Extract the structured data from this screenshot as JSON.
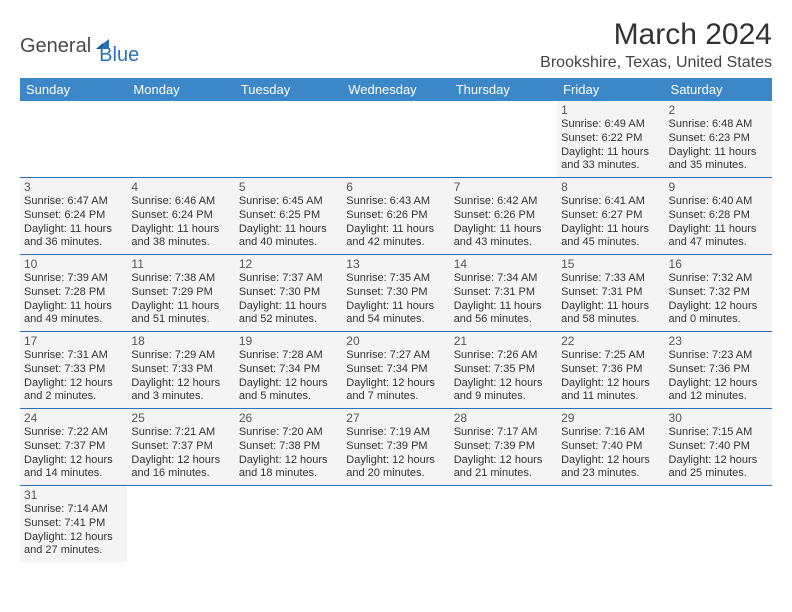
{
  "logo": {
    "text1": "General",
    "text2": "Blue"
  },
  "title": "March 2024",
  "location": "Brookshire, Texas, United States",
  "dayHeaders": [
    "Sunday",
    "Monday",
    "Tuesday",
    "Wednesday",
    "Thursday",
    "Friday",
    "Saturday"
  ],
  "colors": {
    "headerBg": "#3b87c8",
    "headerText": "#ffffff",
    "cellBg": "#f4f4f4",
    "borderColor": "#2a72b5",
    "logoAccent": "#2a72b5",
    "logoGray": "#4a4a4a"
  },
  "layout": {
    "startWeekday": 5,
    "daysInMonth": 31,
    "columns": 7,
    "rows": 6
  },
  "days": {
    "1": {
      "sunrise": "Sunrise: 6:49 AM",
      "sunset": "Sunset: 6:22 PM",
      "daylight1": "Daylight: 11 hours",
      "daylight2": "and 33 minutes."
    },
    "2": {
      "sunrise": "Sunrise: 6:48 AM",
      "sunset": "Sunset: 6:23 PM",
      "daylight1": "Daylight: 11 hours",
      "daylight2": "and 35 minutes."
    },
    "3": {
      "sunrise": "Sunrise: 6:47 AM",
      "sunset": "Sunset: 6:24 PM",
      "daylight1": "Daylight: 11 hours",
      "daylight2": "and 36 minutes."
    },
    "4": {
      "sunrise": "Sunrise: 6:46 AM",
      "sunset": "Sunset: 6:24 PM",
      "daylight1": "Daylight: 11 hours",
      "daylight2": "and 38 minutes."
    },
    "5": {
      "sunrise": "Sunrise: 6:45 AM",
      "sunset": "Sunset: 6:25 PM",
      "daylight1": "Daylight: 11 hours",
      "daylight2": "and 40 minutes."
    },
    "6": {
      "sunrise": "Sunrise: 6:43 AM",
      "sunset": "Sunset: 6:26 PM",
      "daylight1": "Daylight: 11 hours",
      "daylight2": "and 42 minutes."
    },
    "7": {
      "sunrise": "Sunrise: 6:42 AM",
      "sunset": "Sunset: 6:26 PM",
      "daylight1": "Daylight: 11 hours",
      "daylight2": "and 43 minutes."
    },
    "8": {
      "sunrise": "Sunrise: 6:41 AM",
      "sunset": "Sunset: 6:27 PM",
      "daylight1": "Daylight: 11 hours",
      "daylight2": "and 45 minutes."
    },
    "9": {
      "sunrise": "Sunrise: 6:40 AM",
      "sunset": "Sunset: 6:28 PM",
      "daylight1": "Daylight: 11 hours",
      "daylight2": "and 47 minutes."
    },
    "10": {
      "sunrise": "Sunrise: 7:39 AM",
      "sunset": "Sunset: 7:28 PM",
      "daylight1": "Daylight: 11 hours",
      "daylight2": "and 49 minutes."
    },
    "11": {
      "sunrise": "Sunrise: 7:38 AM",
      "sunset": "Sunset: 7:29 PM",
      "daylight1": "Daylight: 11 hours",
      "daylight2": "and 51 minutes."
    },
    "12": {
      "sunrise": "Sunrise: 7:37 AM",
      "sunset": "Sunset: 7:30 PM",
      "daylight1": "Daylight: 11 hours",
      "daylight2": "and 52 minutes."
    },
    "13": {
      "sunrise": "Sunrise: 7:35 AM",
      "sunset": "Sunset: 7:30 PM",
      "daylight1": "Daylight: 11 hours",
      "daylight2": "and 54 minutes."
    },
    "14": {
      "sunrise": "Sunrise: 7:34 AM",
      "sunset": "Sunset: 7:31 PM",
      "daylight1": "Daylight: 11 hours",
      "daylight2": "and 56 minutes."
    },
    "15": {
      "sunrise": "Sunrise: 7:33 AM",
      "sunset": "Sunset: 7:31 PM",
      "daylight1": "Daylight: 11 hours",
      "daylight2": "and 58 minutes."
    },
    "16": {
      "sunrise": "Sunrise: 7:32 AM",
      "sunset": "Sunset: 7:32 PM",
      "daylight1": "Daylight: 12 hours",
      "daylight2": "and 0 minutes."
    },
    "17": {
      "sunrise": "Sunrise: 7:31 AM",
      "sunset": "Sunset: 7:33 PM",
      "daylight1": "Daylight: 12 hours",
      "daylight2": "and 2 minutes."
    },
    "18": {
      "sunrise": "Sunrise: 7:29 AM",
      "sunset": "Sunset: 7:33 PM",
      "daylight1": "Daylight: 12 hours",
      "daylight2": "and 3 minutes."
    },
    "19": {
      "sunrise": "Sunrise: 7:28 AM",
      "sunset": "Sunset: 7:34 PM",
      "daylight1": "Daylight: 12 hours",
      "daylight2": "and 5 minutes."
    },
    "20": {
      "sunrise": "Sunrise: 7:27 AM",
      "sunset": "Sunset: 7:34 PM",
      "daylight1": "Daylight: 12 hours",
      "daylight2": "and 7 minutes."
    },
    "21": {
      "sunrise": "Sunrise: 7:26 AM",
      "sunset": "Sunset: 7:35 PM",
      "daylight1": "Daylight: 12 hours",
      "daylight2": "and 9 minutes."
    },
    "22": {
      "sunrise": "Sunrise: 7:25 AM",
      "sunset": "Sunset: 7:36 PM",
      "daylight1": "Daylight: 12 hours",
      "daylight2": "and 11 minutes."
    },
    "23": {
      "sunrise": "Sunrise: 7:23 AM",
      "sunset": "Sunset: 7:36 PM",
      "daylight1": "Daylight: 12 hours",
      "daylight2": "and 12 minutes."
    },
    "24": {
      "sunrise": "Sunrise: 7:22 AM",
      "sunset": "Sunset: 7:37 PM",
      "daylight1": "Daylight: 12 hours",
      "daylight2": "and 14 minutes."
    },
    "25": {
      "sunrise": "Sunrise: 7:21 AM",
      "sunset": "Sunset: 7:37 PM",
      "daylight1": "Daylight: 12 hours",
      "daylight2": "and 16 minutes."
    },
    "26": {
      "sunrise": "Sunrise: 7:20 AM",
      "sunset": "Sunset: 7:38 PM",
      "daylight1": "Daylight: 12 hours",
      "daylight2": "and 18 minutes."
    },
    "27": {
      "sunrise": "Sunrise: 7:19 AM",
      "sunset": "Sunset: 7:39 PM",
      "daylight1": "Daylight: 12 hours",
      "daylight2": "and 20 minutes."
    },
    "28": {
      "sunrise": "Sunrise: 7:17 AM",
      "sunset": "Sunset: 7:39 PM",
      "daylight1": "Daylight: 12 hours",
      "daylight2": "and 21 minutes."
    },
    "29": {
      "sunrise": "Sunrise: 7:16 AM",
      "sunset": "Sunset: 7:40 PM",
      "daylight1": "Daylight: 12 hours",
      "daylight2": "and 23 minutes."
    },
    "30": {
      "sunrise": "Sunrise: 7:15 AM",
      "sunset": "Sunset: 7:40 PM",
      "daylight1": "Daylight: 12 hours",
      "daylight2": "and 25 minutes."
    },
    "31": {
      "sunrise": "Sunrise: 7:14 AM",
      "sunset": "Sunset: 7:41 PM",
      "daylight1": "Daylight: 12 hours",
      "daylight2": "and 27 minutes."
    }
  }
}
